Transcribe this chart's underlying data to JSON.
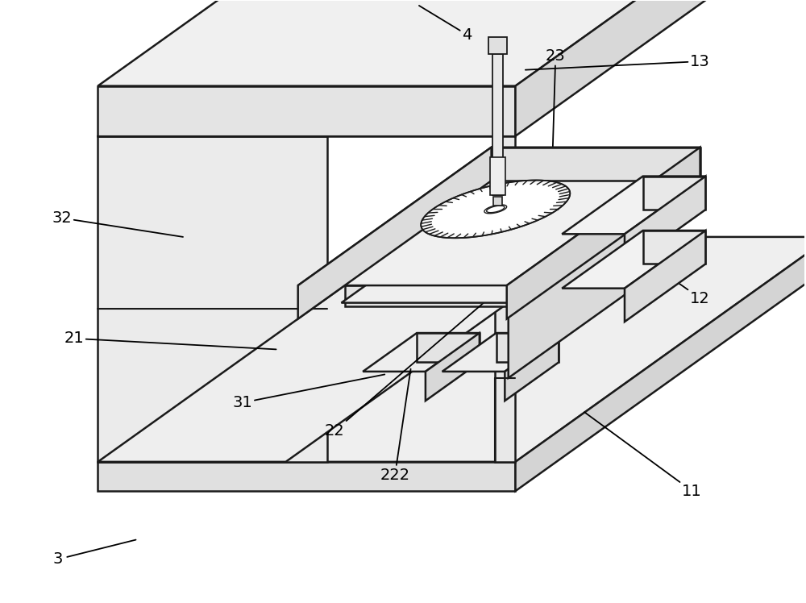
{
  "background_color": "#ffffff",
  "line_color": "#1a1a1a",
  "line_width": 1.8,
  "font_size": 14,
  "text_color": "#000000",
  "fill_top": "#f2f2f2",
  "fill_front": "#e8e8e8",
  "fill_right": "#d8d8d8",
  "fill_white": "#ffffff"
}
